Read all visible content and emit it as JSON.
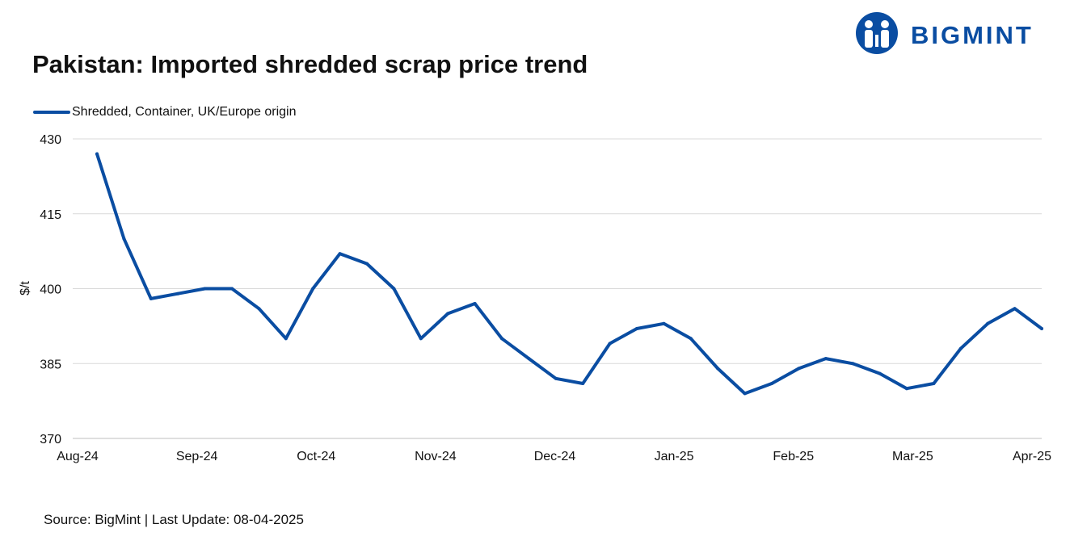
{
  "header": {
    "title": "Pakistan: Imported shredded scrap price trend",
    "logo_text": "BIGMINT",
    "logo_icon": "bigmint-people-logo-icon"
  },
  "footer": {
    "source": "Source: BigMint | Last Update: 08-04-2025"
  },
  "colors": {
    "series": "#0a4da2",
    "grid": "#d9d9d9",
    "text": "#111111"
  },
  "chart_data": {
    "type": "line",
    "title": "Pakistan: Imported shredded scrap price trend",
    "ylabel": "$/t",
    "xlabel": "",
    "ylim": [
      370,
      430
    ],
    "yticks": [
      370,
      385,
      400,
      415,
      430
    ],
    "grid": true,
    "legend_position": "top-left",
    "x_tick_labels": [
      "Aug-24",
      "Sep-24",
      "Oct-24",
      "Nov-24",
      "Dec-24",
      "Jan-25",
      "Feb-25",
      "Mar-25",
      "Apr-25"
    ],
    "series": [
      {
        "name": "Shredded, Container, UK/Europe origin",
        "values": [
          427,
          410,
          398,
          399,
          400,
          400,
          396,
          390,
          400,
          407,
          405,
          400,
          390,
          395,
          397,
          390,
          386,
          382,
          381,
          389,
          392,
          393,
          390,
          384,
          379,
          381,
          384,
          386,
          385,
          383,
          380,
          381,
          388,
          393,
          396,
          392
        ]
      }
    ]
  }
}
